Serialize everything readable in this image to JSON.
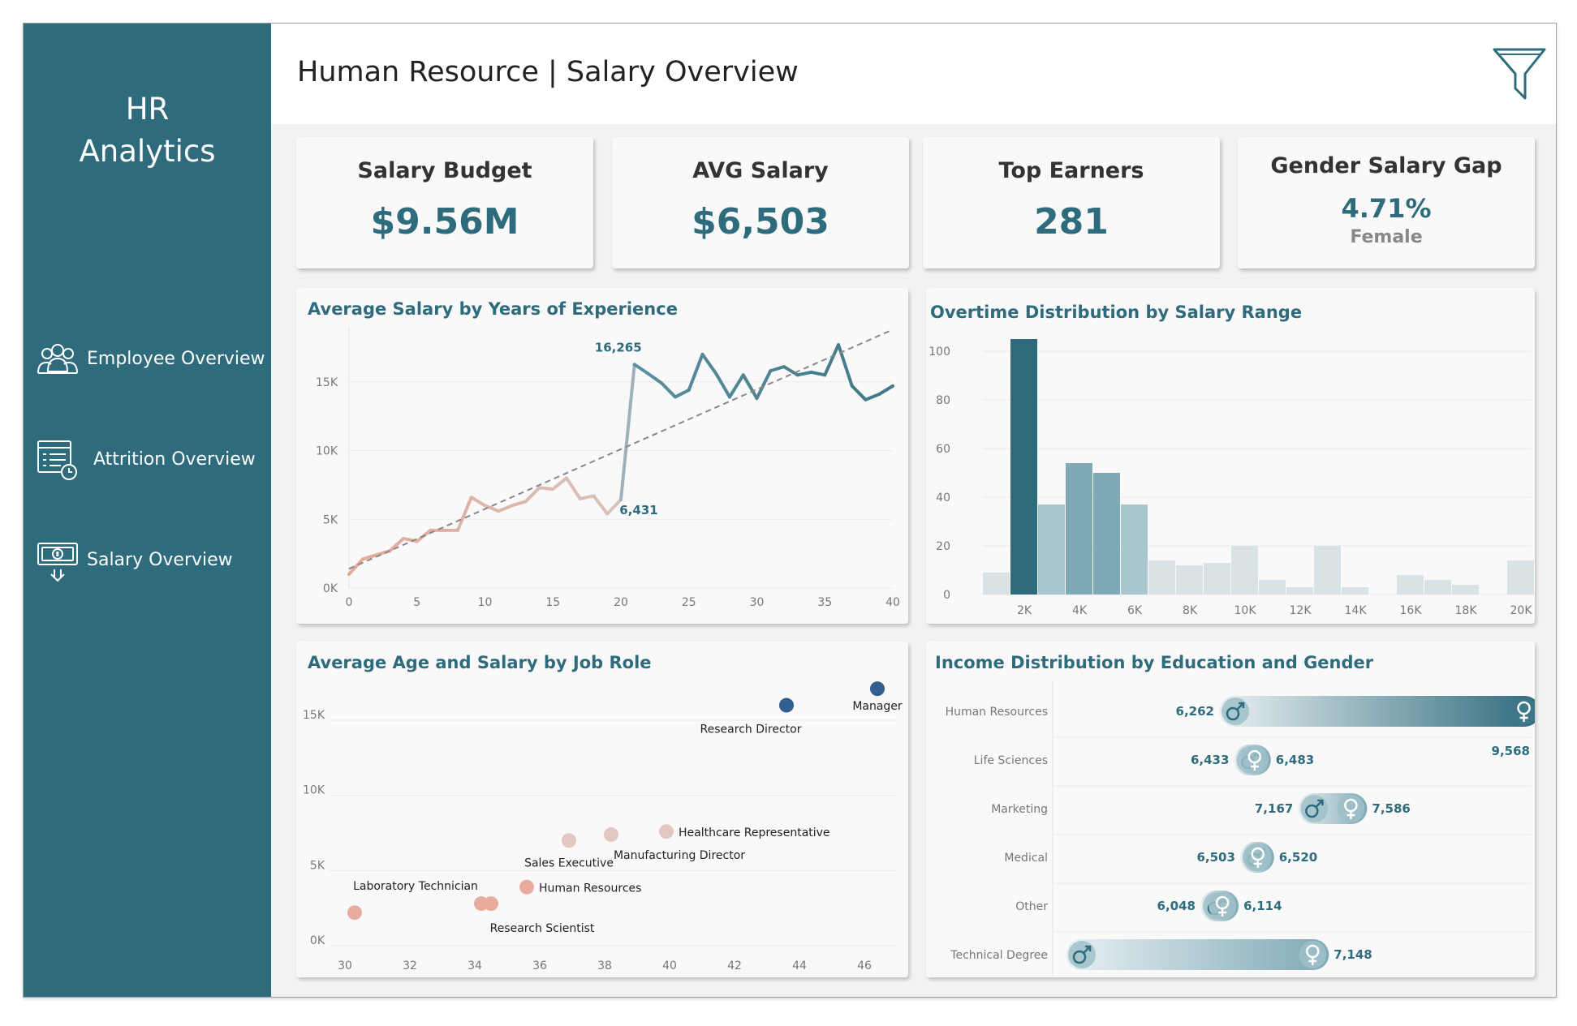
{
  "sidebar": {
    "brand_line1": "HR",
    "brand_line2": "Analytics",
    "nav": [
      {
        "label": "Employee Overview",
        "icon": "people-group-icon"
      },
      {
        "label": "Attrition Overview",
        "icon": "clipboard-clock-icon"
      },
      {
        "label": "Salary Overview",
        "icon": "money-bill-icon"
      }
    ]
  },
  "header": {
    "title": "Human Resource | Salary Overview",
    "filter_icon": "filter-funnel-icon"
  },
  "kpis": {
    "budget": {
      "title": "Salary Budget",
      "value": "$9.56M"
    },
    "avg": {
      "title": "AVG Salary",
      "value": "$6,503"
    },
    "top": {
      "title": "Top Earners",
      "value": "281"
    },
    "gap": {
      "title": "Gender Salary Gap",
      "value": "4.71%",
      "sub": "Female"
    }
  },
  "colors": {
    "primary": "#2e6b7c",
    "mid": "#6e9eac",
    "light": "#8db4c0",
    "pale": "#cfdde2",
    "salmon": "#e0a89a",
    "navy": "#315f8e",
    "trend": "#888888"
  },
  "chart_data": [
    {
      "type": "line",
      "title": "Average Salary by Years of Experience",
      "xlabel": "",
      "ylabel": "",
      "xlim": [
        0,
        40
      ],
      "ylim": [
        0,
        19000
      ],
      "xticks": [
        "0",
        "5",
        "10",
        "15",
        "20",
        "25",
        "30",
        "35",
        "40"
      ],
      "yticks": [
        {
          "label": "0K",
          "value": 0
        },
        {
          "label": "5K",
          "value": 5000
        },
        {
          "label": "10K",
          "value": 10000
        },
        {
          "label": "15K",
          "value": 15000
        }
      ],
      "x": [
        0,
        1,
        2,
        3,
        4,
        5,
        6,
        7,
        8,
        9,
        10,
        11,
        12,
        13,
        14,
        15,
        16,
        17,
        18,
        19,
        20,
        21,
        22,
        23,
        24,
        25,
        26,
        27,
        28,
        29,
        30,
        31,
        32,
        33,
        34,
        35,
        36,
        37,
        38,
        39,
        40
      ],
      "y": [
        1000,
        2100,
        2400,
        2700,
        3600,
        3400,
        4200,
        4200,
        4200,
        6600,
        6000,
        5600,
        6000,
        6300,
        7300,
        7200,
        8000,
        6500,
        6700,
        5400,
        6431,
        16265,
        15600,
        14900,
        13900,
        14400,
        17000,
        15600,
        13900,
        15500,
        13800,
        15800,
        16100,
        15500,
        15700,
        15500,
        17700,
        14700,
        13700,
        14100,
        14700
      ],
      "trend": {
        "start": [
          0,
          1400
        ],
        "end": [
          40,
          18800
        ]
      },
      "annotations": [
        {
          "label": "16,265",
          "x": 21,
          "y": 16265
        },
        {
          "label": "6,431",
          "x": 20,
          "y": 6431
        }
      ]
    },
    {
      "type": "bar",
      "title": "Overtime Distribution by Salary Range",
      "xlabel": "",
      "ylabel": "",
      "ylim": [
        0,
        110
      ],
      "yticks": [
        "0",
        "20",
        "40",
        "60",
        "80",
        "100"
      ],
      "xticks": [
        "2K",
        "4K",
        "6K",
        "8K",
        "10K",
        "12K",
        "14K",
        "16K",
        "18K",
        "20K"
      ],
      "bins": [
        "1K",
        "2K",
        "3K",
        "4K",
        "5K",
        "6K",
        "7K",
        "8K",
        "9K",
        "10K",
        "11K",
        "12K",
        "13K",
        "14K",
        "15K",
        "16K",
        "17K",
        "18K",
        "19K",
        "20K"
      ],
      "values": [
        9,
        105,
        37,
        54,
        50,
        37,
        14,
        12,
        13,
        20,
        6,
        3,
        20,
        3,
        0,
        8,
        6,
        4,
        0,
        14
      ],
      "tones": [
        "pale",
        "dark",
        "light",
        "mid",
        "mid",
        "light",
        "pale",
        "pale",
        "pale",
        "pale",
        "pale",
        "pale",
        "pale",
        "pale",
        "pale",
        "pale",
        "pale",
        "pale",
        "pale",
        "pale"
      ]
    },
    {
      "type": "scatter",
      "title": "Average Age and Salary by Job Role",
      "xlabel": "",
      "ylabel": "",
      "xlim": [
        29.5,
        47
      ],
      "ylim": [
        0,
        17000
      ],
      "xticks": [
        "30",
        "32",
        "34",
        "36",
        "38",
        "40",
        "42",
        "44",
        "46"
      ],
      "yticks": [
        {
          "label": "0K",
          "value": 0
        },
        {
          "label": "5K",
          "value": 5000
        },
        {
          "label": "10K",
          "value": 10000
        },
        {
          "label": "15K",
          "value": 15000
        }
      ],
      "points": [
        {
          "label": "Manager",
          "x": 46.4,
          "y": 17100,
          "tone": "navy"
        },
        {
          "label": "Research Director",
          "x": 43.6,
          "y": 16000,
          "tone": "navy"
        },
        {
          "label": "Healthcare Representative",
          "x": 39.9,
          "y": 7600,
          "tone": "pale"
        },
        {
          "label": "Manufacturing Director",
          "x": 38.2,
          "y": 7400,
          "tone": "pale"
        },
        {
          "label": "Sales Executive",
          "x": 36.9,
          "y": 7000,
          "tone": "pale"
        },
        {
          "label": "Human Resources",
          "x": 35.6,
          "y": 3900,
          "tone": "salmon"
        },
        {
          "label": "",
          "x": 34.5,
          "y": 2800,
          "tone": "salmon"
        },
        {
          "label": "Research Scientist",
          "x": 34.2,
          "y": 2800,
          "tone": "salmon"
        },
        {
          "label": "Laboratory Technician",
          "x": 30.3,
          "y": 2200,
          "tone": "salmon"
        }
      ]
    },
    {
      "type": "bar",
      "title": "Income Distribution by Education and Gender",
      "categories": [
        "Human Resources",
        "Life Sciences",
        "Marketing",
        "Medical",
        "Other",
        "Technical Degree"
      ],
      "series": [
        {
          "name": "male",
          "values": [
            6262,
            6433,
            7167,
            6503,
            6048,
            null
          ]
        },
        {
          "name": "female",
          "values": [
            9568,
            6483,
            7586,
            6520,
            6114,
            7148
          ]
        }
      ],
      "labels": [
        {
          "left": "6,262",
          "right": "9,568"
        },
        {
          "left": "6,433",
          "right": "6,483"
        },
        {
          "left": "7,167",
          "right": "7,586"
        },
        {
          "left": "6,503",
          "right": "6,520"
        },
        {
          "left": "6,048",
          "right": "6,114"
        },
        {
          "left": "",
          "right": "7,148"
        }
      ],
      "domain": [
        4300,
        9600
      ],
      "male_icon": "male-symbol-icon",
      "female_icon": "female-symbol-icon"
    }
  ]
}
